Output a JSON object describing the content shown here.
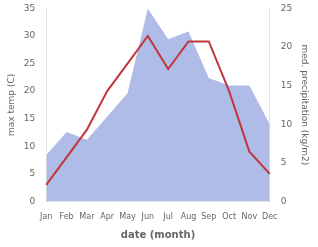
{
  "chart_data": {
    "type": "line",
    "categories": [
      "Jan",
      "Feb",
      "Mar",
      "Apr",
      "May",
      "Jun",
      "Jul",
      "Aug",
      "Sep",
      "Oct",
      "Nov",
      "Dec"
    ],
    "series": [
      {
        "type": "area",
        "color": "#b0bce8",
        "axis": "y2",
        "values": [
          6,
          9,
          8,
          11,
          14,
          25,
          21,
          22,
          16,
          15,
          15,
          10
        ]
      },
      {
        "type": "line",
        "color": "#c0363a",
        "values": [
          3,
          8,
          13,
          20,
          25,
          30,
          24,
          29,
          29,
          20,
          9,
          5
        ]
      }
    ],
    "xlabel": "date (month)",
    "ylabel": "max temp (C)",
    "y2label": "med. precipitation (kg/m2)",
    "ylim": [
      0,
      35
    ],
    "yticks": [
      0,
      5,
      10,
      15,
      20,
      25,
      30,
      35
    ],
    "y2lim": [
      0,
      25
    ],
    "y2ticks": [
      0,
      5,
      10,
      15,
      20,
      25
    ],
    "grid": false
  }
}
